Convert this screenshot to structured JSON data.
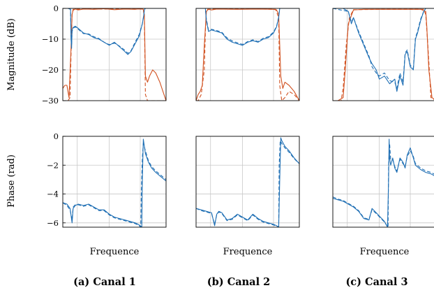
{
  "colors": {
    "blue": "#1f6fb4",
    "orange": "#d1501f",
    "grid": "#c8c8c8"
  },
  "ylabels": {
    "magnitude": "Magnitude (dB)",
    "phase": "Phase (rad)"
  },
  "chart_data": [
    {
      "type": "line",
      "row": "magnitude",
      "column": 0,
      "ylabel": "Magnitude (dB)",
      "xlabel": "",
      "ylim": [
        -30,
        0
      ],
      "yticks": [
        0,
        -10,
        -20,
        -30
      ],
      "xlim": [
        0,
        1
      ],
      "grid": true,
      "series": [
        {
          "color": "orange",
          "dash": false,
          "x": [
            0.0,
            0.02,
            0.04,
            0.06,
            0.08,
            0.09,
            0.1,
            0.12,
            0.15,
            0.2,
            0.3,
            0.4,
            0.5,
            0.6,
            0.7,
            0.75,
            0.78,
            0.79,
            0.8,
            0.82,
            0.84,
            0.87,
            0.9,
            0.94,
            0.98,
            1.0
          ],
          "y": [
            -26,
            -25,
            -25,
            -29,
            -13,
            -2,
            -0.6,
            -0.2,
            -0.5,
            -0.2,
            -0.3,
            -0.1,
            -0.4,
            -0.2,
            -0.3,
            -0.1,
            -0.3,
            -2,
            -22,
            -24,
            -22,
            -20,
            -21,
            -24,
            -28,
            -30
          ]
        },
        {
          "color": "orange",
          "dash": true,
          "x": [
            0.0,
            0.05,
            0.07,
            0.08,
            0.09,
            0.1,
            0.2,
            0.4,
            0.6,
            0.75,
            0.78,
            0.79,
            0.8,
            0.82,
            0.85,
            0.9,
            0.95,
            1.0
          ],
          "y": [
            -30,
            -30,
            -29,
            -15,
            -2,
            -0.3,
            -0.2,
            -0.2,
            -0.2,
            -0.2,
            -0.5,
            -3,
            -28,
            -30,
            -30,
            -30,
            -30,
            -30
          ]
        },
        {
          "color": "blue",
          "dash": false,
          "x": [
            0.0,
            0.04,
            0.06,
            0.075,
            0.08,
            0.085,
            0.09,
            0.1,
            0.12,
            0.15,
            0.2,
            0.25,
            0.3,
            0.35,
            0.4,
            0.45,
            0.5,
            0.55,
            0.6,
            0.63,
            0.66,
            0.7,
            0.74,
            0.77,
            0.785,
            0.79,
            0.795,
            0.8,
            1.0
          ],
          "y": [
            0,
            0,
            0,
            -0.3,
            -10,
            -13,
            -7,
            -6.2,
            -5.8,
            -6.5,
            -8,
            -8.5,
            -9.5,
            -10,
            -11,
            -12,
            -11,
            -12.5,
            -14,
            -15,
            -14,
            -11.5,
            -9,
            -5,
            -2,
            -0.5,
            -0.2,
            0,
            0
          ]
        },
        {
          "color": "blue",
          "dash": true,
          "x": [
            0.0,
            0.05,
            0.075,
            0.08,
            0.085,
            0.09,
            0.1,
            0.12,
            0.15,
            0.2,
            0.25,
            0.3,
            0.35,
            0.4,
            0.45,
            0.5,
            0.55,
            0.6,
            0.63,
            0.66,
            0.7,
            0.74,
            0.77,
            0.785,
            0.79,
            0.8,
            1.0
          ],
          "y": [
            0,
            0,
            -0.3,
            -9,
            -12,
            -7.5,
            -6.5,
            -6,
            -6.8,
            -8.2,
            -8.3,
            -9.2,
            -9.8,
            -11,
            -11.8,
            -11.3,
            -12.3,
            -13.6,
            -14.6,
            -13.8,
            -11,
            -8.5,
            -5,
            -2,
            -0.3,
            0,
            0
          ]
        }
      ]
    },
    {
      "type": "line",
      "row": "magnitude",
      "column": 1,
      "ylabel": "",
      "xlabel": "",
      "ylim": [
        -30,
        0
      ],
      "xlim": [
        0,
        1
      ],
      "grid": true,
      "series": [
        {
          "color": "orange",
          "dash": false,
          "x": [
            0.0,
            0.02,
            0.04,
            0.06,
            0.08,
            0.1,
            0.12,
            0.15,
            0.2,
            0.4,
            0.6,
            0.75,
            0.78,
            0.8,
            0.82,
            0.84,
            0.86,
            0.9,
            0.95,
            1.0
          ],
          "y": [
            -30,
            -28,
            -27,
            -25,
            -12,
            -1,
            -0.3,
            -0.5,
            -0.2,
            -0.3,
            -0.2,
            -0.3,
            -0.5,
            -2,
            -22,
            -26,
            -24,
            -25,
            -27,
            -30
          ]
        },
        {
          "color": "orange",
          "dash": true,
          "x": [
            0.0,
            0.02,
            0.05,
            0.08,
            0.09,
            0.1,
            0.2,
            0.4,
            0.6,
            0.77,
            0.8,
            0.81,
            0.83,
            0.86,
            0.9,
            0.95,
            1.0
          ],
          "y": [
            -30,
            -30,
            -28,
            -20,
            -8,
            -0.3,
            -0.2,
            -0.2,
            -0.2,
            -0.3,
            -3,
            -25,
            -30,
            -29,
            -27,
            -28,
            -30
          ]
        },
        {
          "color": "blue",
          "dash": false,
          "x": [
            0.0,
            0.05,
            0.09,
            0.1,
            0.12,
            0.15,
            0.2,
            0.25,
            0.3,
            0.35,
            0.4,
            0.45,
            0.5,
            0.55,
            0.6,
            0.65,
            0.7,
            0.75,
            0.78,
            0.8,
            0.81,
            1.0
          ],
          "y": [
            0,
            0,
            0,
            -4,
            -7.5,
            -7,
            -7.5,
            -8,
            -10,
            -11,
            -11.5,
            -12,
            -11,
            -10.5,
            -11,
            -10,
            -9.5,
            -8,
            -6,
            -3,
            0,
            0
          ]
        },
        {
          "color": "blue",
          "dash": true,
          "x": [
            0.0,
            0.09,
            0.1,
            0.12,
            0.15,
            0.2,
            0.25,
            0.3,
            0.35,
            0.4,
            0.45,
            0.5,
            0.55,
            0.6,
            0.65,
            0.7,
            0.75,
            0.78,
            0.8,
            0.81,
            1.0
          ],
          "y": [
            0,
            0,
            -3.5,
            -7,
            -6.8,
            -7.2,
            -7.8,
            -9.6,
            -10.6,
            -11.2,
            -11.7,
            -10.8,
            -10.2,
            -10.8,
            -9.7,
            -9.2,
            -7.7,
            -5.8,
            -2.8,
            0,
            0
          ]
        }
      ]
    },
    {
      "type": "line",
      "row": "magnitude",
      "column": 2,
      "ylabel": "",
      "xlabel": "",
      "ylim": [
        -30,
        0
      ],
      "xlim": [
        0,
        1
      ],
      "grid": true,
      "series": [
        {
          "color": "orange",
          "dash": false,
          "x": [
            0.0,
            0.05,
            0.1,
            0.12,
            0.15,
            0.2,
            0.3,
            0.5,
            0.7,
            0.85,
            0.9,
            0.91,
            0.93,
            0.96,
            1.0
          ],
          "y": [
            -30,
            -30,
            -29,
            -20,
            -5,
            -0.5,
            -0.3,
            -0.3,
            -0.3,
            -0.3,
            -1,
            -6,
            -20,
            -29,
            -30
          ]
        },
        {
          "color": "orange",
          "dash": true,
          "x": [
            0.0,
            0.08,
            0.1,
            0.13,
            0.16,
            0.2,
            0.5,
            0.88,
            0.9,
            0.92,
            0.95,
            1.0
          ],
          "y": [
            -30,
            -30,
            -26,
            -12,
            -3,
            -0.4,
            -0.3,
            -0.3,
            -2,
            -12,
            -29,
            -30
          ]
        },
        {
          "color": "blue",
          "dash": false,
          "x": [
            0.0,
            0.05,
            0.1,
            0.15,
            0.18,
            0.2,
            0.25,
            0.3,
            0.35,
            0.38,
            0.42,
            0.45,
            0.5,
            0.55,
            0.6,
            0.62,
            0.65,
            0.68,
            0.7,
            0.72,
            0.75,
            0.78,
            0.8,
            0.82,
            0.85,
            0.88,
            0.9,
            1.0
          ],
          "y": [
            0,
            0,
            0,
            -1,
            -5,
            -3,
            -8,
            -12,
            -16,
            -18,
            -20,
            -23,
            -22,
            -24.5,
            -23,
            -27,
            -22,
            -25,
            -15,
            -14,
            -19,
            -20,
            -10,
            -8,
            -4,
            -1,
            0,
            0
          ]
        },
        {
          "color": "blue",
          "dash": true,
          "x": [
            0.0,
            0.15,
            0.18,
            0.2,
            0.25,
            0.3,
            0.35,
            0.38,
            0.42,
            0.45,
            0.5,
            0.55,
            0.6,
            0.62,
            0.65,
            0.68,
            0.7,
            0.72,
            0.75,
            0.78,
            0.8,
            0.82,
            0.85,
            0.88,
            0.9,
            1.0
          ],
          "y": [
            0,
            -1,
            -4.5,
            -3,
            -7.5,
            -11.5,
            -15.5,
            -19,
            -21,
            -22,
            -21,
            -23.5,
            -24,
            -26,
            -21,
            -24,
            -14.5,
            -13.5,
            -18.5,
            -19.5,
            -9.5,
            -7.5,
            -3.5,
            -1,
            0,
            0
          ]
        }
      ]
    },
    {
      "type": "line",
      "row": "phase",
      "column": 0,
      "ylabel": "Phase (rad)",
      "xlabel": "Frequence",
      "ylim": [
        -6.3,
        0
      ],
      "yticks": [
        0,
        -2,
        -4,
        -6
      ],
      "xlim": [
        0,
        1
      ],
      "grid": true,
      "series": [
        {
          "color": "blue",
          "dash": false,
          "x": [
            0.0,
            0.04,
            0.07,
            0.09,
            0.1,
            0.12,
            0.15,
            0.2,
            0.25,
            0.3,
            0.35,
            0.4,
            0.45,
            0.5,
            0.55,
            0.6,
            0.65,
            0.7,
            0.73,
            0.75,
            0.765,
            0.77,
            0.78,
            0.79,
            0.8,
            0.83,
            0.86,
            0.9,
            0.95,
            1.0
          ],
          "y": [
            -4.6,
            -4.7,
            -5.0,
            -6.0,
            -5.0,
            -4.8,
            -4.7,
            -4.8,
            -4.7,
            -4.9,
            -5.1,
            -5.1,
            -5.4,
            -5.6,
            -5.7,
            -5.8,
            -5.9,
            -6.0,
            -6.1,
            -6.2,
            -6.3,
            -3.0,
            -0.2,
            -0.7,
            -1.2,
            -1.8,
            -2.2,
            -2.5,
            -2.8,
            -3.1
          ]
        },
        {
          "color": "blue",
          "dash": true,
          "x": [
            0.0,
            0.04,
            0.07,
            0.09,
            0.1,
            0.12,
            0.15,
            0.2,
            0.25,
            0.3,
            0.35,
            0.4,
            0.45,
            0.5,
            0.55,
            0.6,
            0.65,
            0.7,
            0.74,
            0.755,
            0.76,
            0.77,
            0.78,
            0.8,
            0.83,
            0.86,
            0.9,
            0.95,
            1.0
          ],
          "y": [
            -4.6,
            -4.8,
            -5.1,
            -5.8,
            -4.9,
            -4.75,
            -4.75,
            -4.85,
            -4.75,
            -4.95,
            -5.15,
            -5.15,
            -5.45,
            -5.65,
            -5.75,
            -5.85,
            -5.95,
            -6.05,
            -6.2,
            -6.3,
            -4.0,
            -1.5,
            -0.5,
            -1.0,
            -1.7,
            -2.1,
            -2.4,
            -2.7,
            -3.0
          ]
        }
      ]
    },
    {
      "type": "line",
      "row": "phase",
      "column": 1,
      "ylabel": "",
      "xlabel": "Frequence",
      "ylim": [
        -6.3,
        0
      ],
      "xlim": [
        0,
        1
      ],
      "grid": true,
      "series": [
        {
          "color": "blue",
          "dash": false,
          "x": [
            0.0,
            0.05,
            0.1,
            0.15,
            0.18,
            0.2,
            0.22,
            0.25,
            0.3,
            0.35,
            0.4,
            0.45,
            0.5,
            0.55,
            0.6,
            0.65,
            0.7,
            0.75,
            0.78,
            0.8,
            0.81,
            0.82,
            0.83,
            0.86,
            0.9,
            0.95,
            1.0
          ],
          "y": [
            -5.0,
            -5.1,
            -5.2,
            -5.3,
            -6.2,
            -5.4,
            -5.2,
            -5.3,
            -5.8,
            -5.7,
            -5.4,
            -5.6,
            -5.8,
            -5.4,
            -5.7,
            -5.9,
            -6.0,
            -6.1,
            -6.2,
            -6.3,
            -3.0,
            -0.1,
            -0.3,
            -0.7,
            -1.0,
            -1.5,
            -1.9
          ]
        },
        {
          "color": "blue",
          "dash": true,
          "x": [
            0.0,
            0.05,
            0.1,
            0.15,
            0.18,
            0.2,
            0.22,
            0.25,
            0.3,
            0.35,
            0.4,
            0.45,
            0.5,
            0.55,
            0.6,
            0.65,
            0.7,
            0.75,
            0.79,
            0.8,
            0.805,
            0.815,
            0.83,
            0.86,
            0.9,
            0.95,
            1.0
          ],
          "y": [
            -5.0,
            -5.15,
            -5.25,
            -5.35,
            -6.1,
            -5.45,
            -5.25,
            -5.35,
            -5.85,
            -5.75,
            -5.45,
            -5.65,
            -5.85,
            -5.45,
            -5.75,
            -5.95,
            -6.05,
            -6.15,
            -6.25,
            -6.3,
            -2.0,
            -0.3,
            -0.5,
            -0.8,
            -1.1,
            -1.55,
            -1.9
          ]
        }
      ]
    },
    {
      "type": "line",
      "row": "phase",
      "column": 2,
      "ylabel": "",
      "xlabel": "Frequence",
      "ylim": [
        -6.3,
        0
      ],
      "xlim": [
        0,
        1
      ],
      "grid": true,
      "series": [
        {
          "color": "blue",
          "dash": false,
          "x": [
            0.0,
            0.05,
            0.1,
            0.15,
            0.2,
            0.25,
            0.3,
            0.35,
            0.38,
            0.42,
            0.46,
            0.5,
            0.53,
            0.54,
            0.545,
            0.55,
            0.56,
            0.58,
            0.6,
            0.62,
            0.65,
            0.68,
            0.7,
            0.72,
            0.75,
            0.78,
            0.8,
            0.85,
            0.9,
            0.95,
            1.0
          ],
          "y": [
            -4.3,
            -4.4,
            -4.5,
            -4.7,
            -4.9,
            -5.2,
            -5.7,
            -5.8,
            -5.0,
            -5.3,
            -5.6,
            -5.9,
            -6.3,
            -3.0,
            -0.2,
            -1.5,
            -2.0,
            -1.5,
            -2.2,
            -2.5,
            -1.5,
            -1.8,
            -2.2,
            -1.3,
            -0.8,
            -1.5,
            -2.0,
            -2.3,
            -2.5,
            -2.6,
            -2.8
          ]
        },
        {
          "color": "blue",
          "dash": true,
          "x": [
            0.0,
            0.05,
            0.1,
            0.15,
            0.2,
            0.25,
            0.3,
            0.35,
            0.38,
            0.42,
            0.46,
            0.5,
            0.535,
            0.54,
            0.55,
            0.56,
            0.58,
            0.6,
            0.62,
            0.65,
            0.68,
            0.7,
            0.72,
            0.75,
            0.78,
            0.8,
            0.85,
            0.9,
            0.95,
            1.0
          ],
          "y": [
            -4.2,
            -4.35,
            -4.45,
            -4.65,
            -4.85,
            -5.15,
            -5.65,
            -5.75,
            -5.1,
            -5.35,
            -5.65,
            -5.95,
            -6.3,
            -2.0,
            -0.5,
            -1.6,
            -1.6,
            -2.1,
            -2.4,
            -1.6,
            -1.9,
            -2.1,
            -1.4,
            -1.0,
            -1.4,
            -1.9,
            -2.2,
            -2.4,
            -2.5,
            -2.7
          ]
        }
      ]
    }
  ],
  "captions": [
    "(a) Canal 1",
    "(b) Canal 2",
    "(c) Canal 3"
  ]
}
